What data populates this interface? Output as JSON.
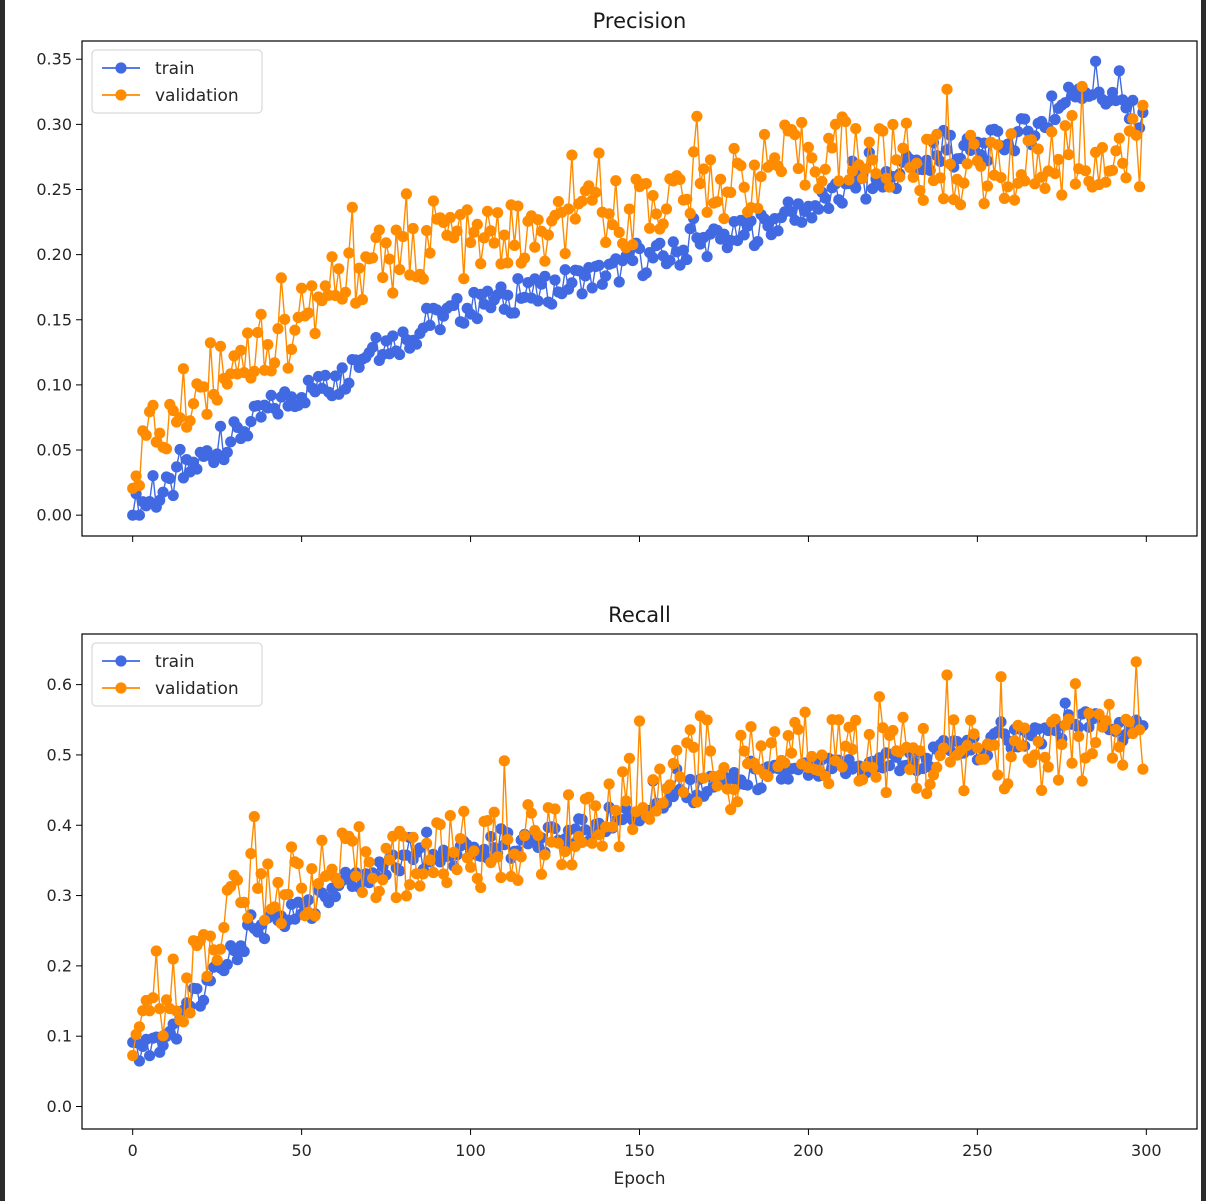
{
  "figure": {
    "xlabel": "Epoch",
    "x_ticks": [
      0,
      50,
      100,
      150,
      200,
      250,
      300
    ]
  },
  "legend": {
    "train_label": "train",
    "validation_label": "validation"
  },
  "colors": {
    "train": "#4169e1",
    "validation": "#ff8c00",
    "axes": "#000000",
    "frame_border": "#2b2b2b"
  },
  "chart_data": [
    {
      "type": "line",
      "title": "Precision",
      "xlabel": "",
      "ylabel": "",
      "xlim": [
        -15,
        315
      ],
      "ylim": [
        -0.016,
        0.364
      ],
      "x_ticks": [
        0,
        50,
        100,
        150,
        200,
        250,
        300
      ],
      "y_ticks": [
        "0.00",
        "0.05",
        "0.10",
        "0.15",
        "0.20",
        "0.25",
        "0.30",
        "0.35"
      ],
      "x_tick_labels_visible": false,
      "legend_position": "upper left",
      "markers": true,
      "series": [
        {
          "name": "train",
          "color": "#4169e1",
          "x": [
            0,
            10,
            20,
            30,
            40,
            50,
            60,
            70,
            80,
            90,
            100,
            110,
            120,
            130,
            140,
            150,
            160,
            170,
            180,
            190,
            200,
            210,
            220,
            230,
            240,
            250,
            260,
            270,
            280,
            290,
            299
          ],
          "values": [
            0.005,
            0.018,
            0.042,
            0.06,
            0.08,
            0.095,
            0.1,
            0.128,
            0.135,
            0.15,
            0.16,
            0.165,
            0.17,
            0.18,
            0.185,
            0.195,
            0.2,
            0.21,
            0.215,
            0.225,
            0.235,
            0.245,
            0.255,
            0.265,
            0.275,
            0.28,
            0.29,
            0.3,
            0.33,
            0.32,
            0.3
          ]
        },
        {
          "name": "validation",
          "color": "#ff8c00",
          "x": [
            0,
            10,
            20,
            30,
            40,
            50,
            60,
            70,
            80,
            90,
            100,
            110,
            120,
            130,
            140,
            150,
            160,
            170,
            180,
            190,
            200,
            210,
            220,
            230,
            240,
            250,
            260,
            270,
            280,
            290,
            299
          ],
          "values": [
            0.045,
            0.07,
            0.1,
            0.125,
            0.12,
            0.15,
            0.165,
            0.2,
            0.19,
            0.22,
            0.205,
            0.215,
            0.21,
            0.22,
            0.23,
            0.235,
            0.245,
            0.255,
            0.255,
            0.27,
            0.275,
            0.28,
            0.275,
            0.27,
            0.265,
            0.265,
            0.265,
            0.27,
            0.275,
            0.265,
            0.27
          ]
        }
      ]
    },
    {
      "type": "line",
      "title": "Recall",
      "xlabel": "Epoch",
      "ylabel": "",
      "xlim": [
        -15,
        315
      ],
      "ylim": [
        -0.032,
        0.672
      ],
      "x_ticks": [
        0,
        50,
        100,
        150,
        200,
        250,
        300
      ],
      "y_ticks": [
        "0.0",
        "0.1",
        "0.2",
        "0.3",
        "0.4",
        "0.5",
        "0.6"
      ],
      "x_tick_labels_visible": true,
      "legend_position": "upper left",
      "markers": true,
      "series": [
        {
          "name": "train",
          "color": "#4169e1",
          "x": [
            0,
            10,
            20,
            30,
            40,
            50,
            60,
            70,
            80,
            90,
            100,
            110,
            120,
            130,
            140,
            150,
            160,
            170,
            180,
            190,
            200,
            210,
            220,
            230,
            240,
            250,
            260,
            270,
            280,
            290,
            299
          ],
          "values": [
            0.08,
            0.09,
            0.16,
            0.22,
            0.26,
            0.275,
            0.31,
            0.33,
            0.345,
            0.355,
            0.36,
            0.365,
            0.375,
            0.39,
            0.4,
            0.42,
            0.44,
            0.455,
            0.46,
            0.47,
            0.475,
            0.48,
            0.485,
            0.49,
            0.5,
            0.51,
            0.52,
            0.53,
            0.55,
            0.54,
            0.53
          ]
        },
        {
          "name": "validation",
          "color": "#ff8c00",
          "x": [
            0,
            10,
            20,
            30,
            40,
            50,
            60,
            70,
            80,
            90,
            100,
            110,
            120,
            130,
            140,
            150,
            160,
            170,
            180,
            190,
            200,
            210,
            220,
            230,
            240,
            250,
            260,
            270,
            280,
            290,
            299
          ],
          "values": [
            0.06,
            0.15,
            0.2,
            0.3,
            0.31,
            0.32,
            0.33,
            0.35,
            0.34,
            0.36,
            0.36,
            0.37,
            0.38,
            0.39,
            0.41,
            0.44,
            0.46,
            0.47,
            0.48,
            0.5,
            0.52,
            0.51,
            0.5,
            0.5,
            0.49,
            0.51,
            0.5,
            0.5,
            0.51,
            0.52,
            0.525
          ]
        }
      ]
    }
  ]
}
